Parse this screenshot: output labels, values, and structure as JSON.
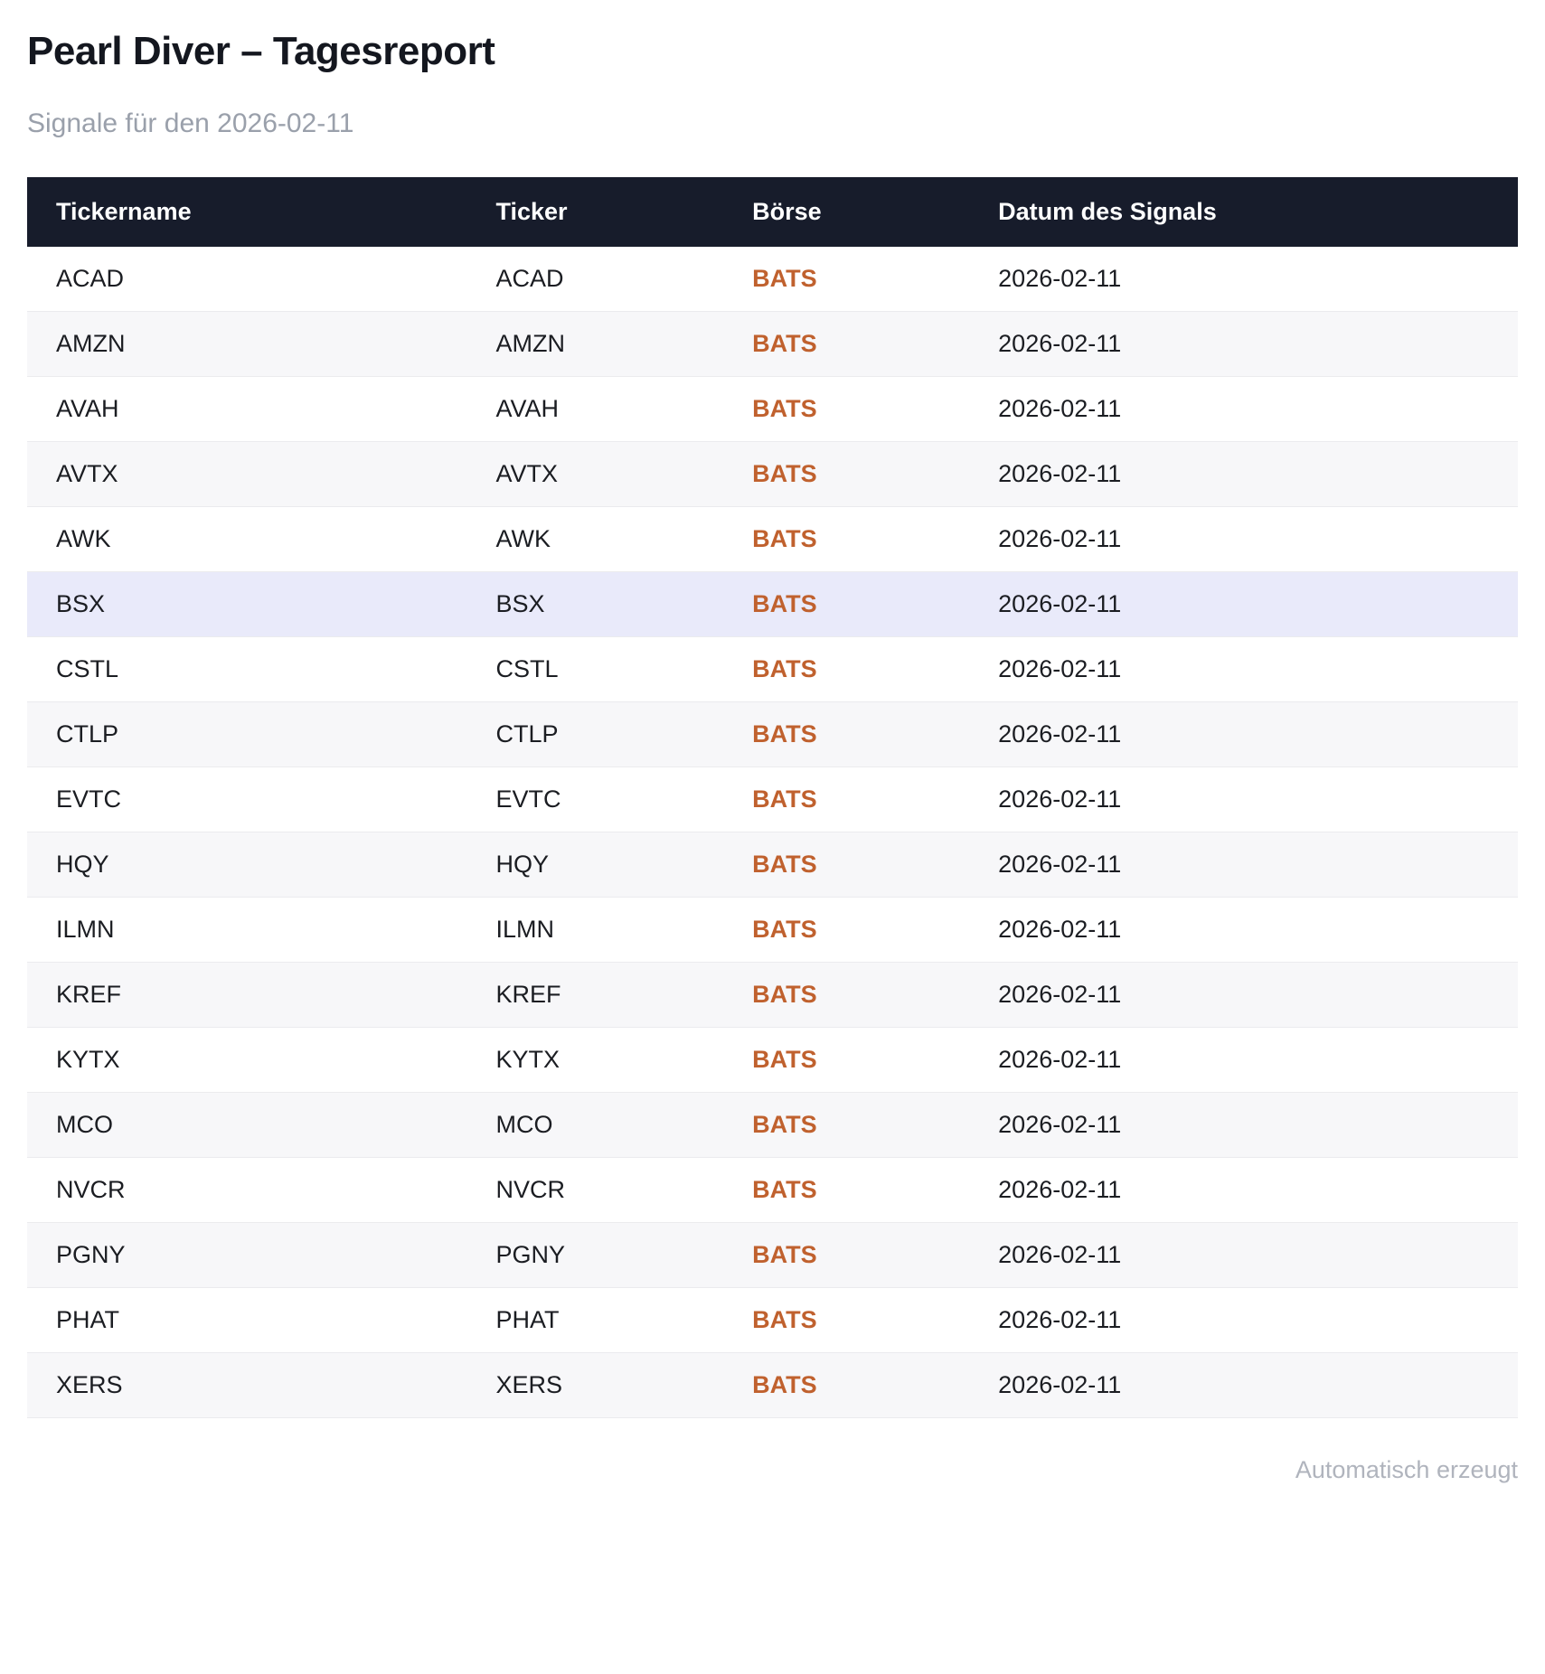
{
  "page": {
    "title": "Pearl Diver – Tagesreport",
    "subtitle": "Signale für den 2026-02-11",
    "footer": "Automatisch erzeugt"
  },
  "table": {
    "columns": [
      "Tickername",
      "Ticker",
      "Börse",
      "Datum des Signals"
    ],
    "rows": [
      {
        "name": "ACAD",
        "ticker": "ACAD",
        "exchange": "BATS",
        "date": "2026-02-11",
        "highlight": false
      },
      {
        "name": "AMZN",
        "ticker": "AMZN",
        "exchange": "BATS",
        "date": "2026-02-11",
        "highlight": false
      },
      {
        "name": "AVAH",
        "ticker": "AVAH",
        "exchange": "BATS",
        "date": "2026-02-11",
        "highlight": false
      },
      {
        "name": "AVTX",
        "ticker": "AVTX",
        "exchange": "BATS",
        "date": "2026-02-11",
        "highlight": false
      },
      {
        "name": "AWK",
        "ticker": "AWK",
        "exchange": "BATS",
        "date": "2026-02-11",
        "highlight": false
      },
      {
        "name": "BSX",
        "ticker": "BSX",
        "exchange": "BATS",
        "date": "2026-02-11",
        "highlight": true
      },
      {
        "name": "CSTL",
        "ticker": "CSTL",
        "exchange": "BATS",
        "date": "2026-02-11",
        "highlight": false
      },
      {
        "name": "CTLP",
        "ticker": "CTLP",
        "exchange": "BATS",
        "date": "2026-02-11",
        "highlight": false
      },
      {
        "name": "EVTC",
        "ticker": "EVTC",
        "exchange": "BATS",
        "date": "2026-02-11",
        "highlight": false
      },
      {
        "name": "HQY",
        "ticker": "HQY",
        "exchange": "BATS",
        "date": "2026-02-11",
        "highlight": false
      },
      {
        "name": "ILMN",
        "ticker": "ILMN",
        "exchange": "BATS",
        "date": "2026-02-11",
        "highlight": false
      },
      {
        "name": "KREF",
        "ticker": "KREF",
        "exchange": "BATS",
        "date": "2026-02-11",
        "highlight": false
      },
      {
        "name": "KYTX",
        "ticker": "KYTX",
        "exchange": "BATS",
        "date": "2026-02-11",
        "highlight": false
      },
      {
        "name": "MCO",
        "ticker": "MCO",
        "exchange": "BATS",
        "date": "2026-02-11",
        "highlight": false
      },
      {
        "name": "NVCR",
        "ticker": "NVCR",
        "exchange": "BATS",
        "date": "2026-02-11",
        "highlight": false
      },
      {
        "name": "PGNY",
        "ticker": "PGNY",
        "exchange": "BATS",
        "date": "2026-02-11",
        "highlight": false
      },
      {
        "name": "PHAT",
        "ticker": "PHAT",
        "exchange": "BATS",
        "date": "2026-02-11",
        "highlight": false
      },
      {
        "name": "XERS",
        "ticker": "XERS",
        "exchange": "BATS",
        "date": "2026-02-11",
        "highlight": false
      }
    ]
  },
  "colors": {
    "header_bg": "#171c2b",
    "exchange_text": "#c0612e",
    "highlight_row_bg": "#e9eafa",
    "stripe_row_bg": "#f7f7f9"
  }
}
